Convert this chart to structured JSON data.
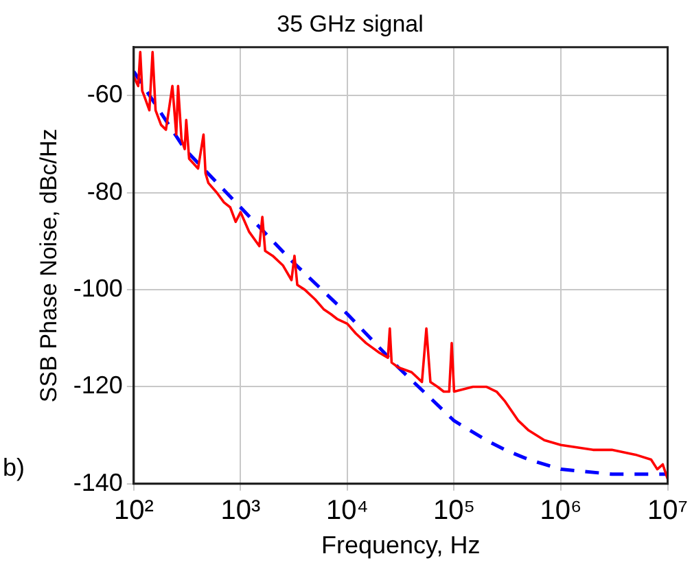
{
  "chart_data": {
    "type": "line",
    "title": "35 GHz signal",
    "xlabel": "Frequency, Hz",
    "ylabel": "SSB Phase Noise, dBc/Hz",
    "annotations": [
      "b)"
    ],
    "log": "x",
    "grid": true,
    "legend": false,
    "marker": "none",
    "xlim": [
      100,
      10000000
    ],
    "xticks": [
      {
        "value": 100,
        "label": "10²"
      },
      {
        "value": 1000,
        "label": "10³"
      },
      {
        "value": 10000,
        "label": "10⁴"
      },
      {
        "value": 100000,
        "label": "10⁵"
      },
      {
        "value": 1000000,
        "label": "10⁶"
      },
      {
        "value": 10000000,
        "label": "10⁷"
      }
    ],
    "ylim": [
      -140,
      -50
    ],
    "yticks": [
      -140,
      -120,
      -100,
      -80,
      -60
    ],
    "series": [
      {
        "color": "#ff0000",
        "line_style": "solid",
        "x": [
          100,
          110,
          115,
          120,
          125,
          140,
          150,
          160,
          180,
          200,
          230,
          250,
          260,
          280,
          300,
          310,
          330,
          400,
          450,
          470,
          500,
          600,
          700,
          800,
          900,
          1000,
          1200,
          1500,
          1600,
          1700,
          2000,
          2500,
          3000,
          3200,
          3400,
          4000,
          5000,
          6000,
          7000,
          8000,
          10000,
          12000,
          15000,
          20000,
          24000,
          25000,
          26000,
          30000,
          40000,
          50000,
          55000,
          60000,
          70000,
          80000,
          90000,
          95000,
          100000,
          150000,
          200000,
          250000,
          300000,
          400000,
          500000,
          700000,
          1000000,
          2000000,
          3000000,
          5000000,
          7000000,
          8000000,
          9000000,
          10000000
        ],
        "values": [
          -56,
          -58,
          -51,
          -59,
          -60,
          -63,
          -51,
          -63,
          -66,
          -67,
          -58,
          -68,
          -58,
          -69,
          -71,
          -65,
          -73,
          -75,
          -68,
          -76,
          -78,
          -80,
          -82,
          -83,
          -86,
          -84,
          -88,
          -91,
          -85,
          -92,
          -93,
          -95,
          -98,
          -93,
          -99,
          -100,
          -102,
          -104,
          -105,
          -106,
          -107,
          -109,
          -111,
          -113,
          -114,
          -108,
          -115,
          -116,
          -117,
          -119,
          -108,
          -119,
          -120,
          -121,
          -121,
          -111,
          -121,
          -120,
          -120,
          -121,
          -123,
          -127,
          -129,
          -131,
          -132,
          -133,
          -133,
          -134,
          -135,
          -137,
          -136,
          -139
        ]
      },
      {
        "color": "#0000ff",
        "line_style": "dashed",
        "x": [
          100,
          300,
          1000,
          3000,
          10000,
          30000,
          100000,
          200000,
          300000,
          500000,
          1000000,
          3000000,
          10000000
        ],
        "values": [
          -55,
          -71,
          -83,
          -94,
          -105,
          -116,
          -127,
          -131,
          -133,
          -135,
          -137,
          -138,
          -138
        ]
      }
    ]
  }
}
